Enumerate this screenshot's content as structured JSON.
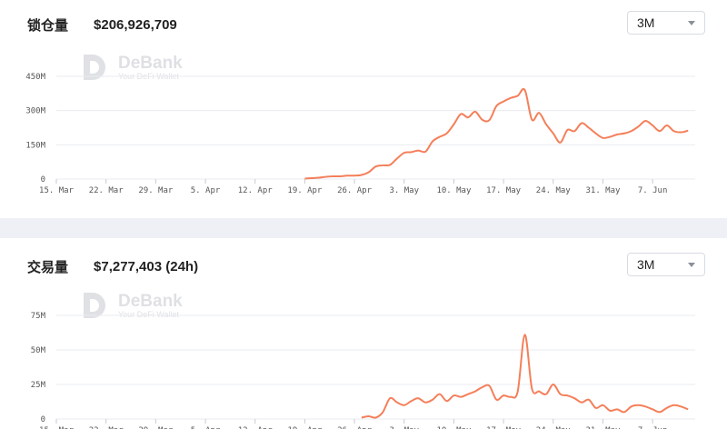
{
  "tvl": {
    "label": "锁仓量",
    "value": "$206,926,709",
    "range": "3M"
  },
  "volume": {
    "label": "交易量",
    "value": "$7,277,403 (24h)",
    "range": "3M"
  },
  "watermark": {
    "name": "DeBank",
    "tagline": "Your DeFi Wallet"
  },
  "colors": {
    "line": "#f47f5a",
    "grid": "#e9ebf0",
    "divider": "#eef0f5"
  },
  "chart_data": [
    {
      "type": "line",
      "title": "锁仓量",
      "xlabel": "",
      "ylabel": "",
      "ylim": [
        0,
        450
      ],
      "yticks": [
        0,
        150,
        300,
        450
      ],
      "ytick_labels": [
        "0",
        "150M",
        "300M",
        "450M"
      ],
      "x_tick_labels": [
        "15. Mar",
        "22. Mar",
        "29. Mar",
        "5. Apr",
        "12. Apr",
        "19. Apr",
        "26. Apr",
        "3. May",
        "10. May",
        "17. May",
        "24. May",
        "31. May",
        "7. Jun"
      ],
      "grid": true,
      "units": "million USD",
      "x": [
        35,
        36,
        37,
        38,
        39,
        40,
        41,
        42,
        43,
        44,
        45,
        46,
        47,
        48,
        49,
        50,
        51,
        52,
        53,
        54,
        55,
        56,
        57,
        58,
        59,
        60,
        61,
        62,
        63,
        64,
        65,
        66,
        67,
        68,
        69,
        70,
        71,
        72,
        73,
        74,
        75,
        76,
        77,
        78,
        79,
        80,
        81,
        82,
        83,
        84,
        85,
        86,
        87,
        88,
        89
      ],
      "x_note": "days after 15. Mar",
      "series": [
        {
          "values": [
            2,
            4,
            6,
            10,
            12,
            12,
            15,
            15,
            18,
            30,
            55,
            60,
            62,
            90,
            115,
            118,
            125,
            120,
            165,
            185,
            200,
            240,
            285,
            270,
            295,
            260,
            258,
            320,
            340,
            355,
            365,
            390,
            260,
            290,
            240,
            200,
            160,
            215,
            210,
            245,
            225,
            200,
            180,
            185,
            195,
            200,
            210,
            230,
            255,
            235,
            210,
            235,
            210,
            205,
            212
          ]
        }
      ]
    },
    {
      "type": "line",
      "title": "交易量",
      "xlabel": "",
      "ylabel": "",
      "ylim": [
        0,
        75
      ],
      "yticks": [
        0,
        25,
        50,
        75
      ],
      "ytick_labels": [
        "0",
        "25M",
        "50M",
        "75M"
      ],
      "grid": true,
      "units": "million USD",
      "x": [
        43,
        44,
        45,
        46,
        47,
        48,
        49,
        50,
        51,
        52,
        53,
        54,
        55,
        56,
        57,
        58,
        59,
        60,
        61,
        62,
        63,
        64,
        65,
        66,
        67,
        68,
        69,
        70,
        71,
        72,
        73,
        74,
        75,
        76,
        77,
        78,
        79,
        80,
        81,
        82,
        83,
        84,
        85,
        86,
        87,
        88,
        89
      ],
      "series": [
        {
          "values": [
            1,
            2,
            1,
            5,
            15,
            12,
            10,
            13,
            15,
            12,
            14,
            18,
            13,
            17,
            16,
            18,
            20,
            23,
            24,
            14,
            17,
            16,
            20,
            61,
            22,
            20,
            18,
            25,
            18,
            17,
            15,
            12,
            14,
            8,
            10,
            6,
            7,
            5,
            9,
            10,
            9,
            7,
            5,
            8,
            10,
            9,
            7
          ]
        }
      ]
    }
  ]
}
